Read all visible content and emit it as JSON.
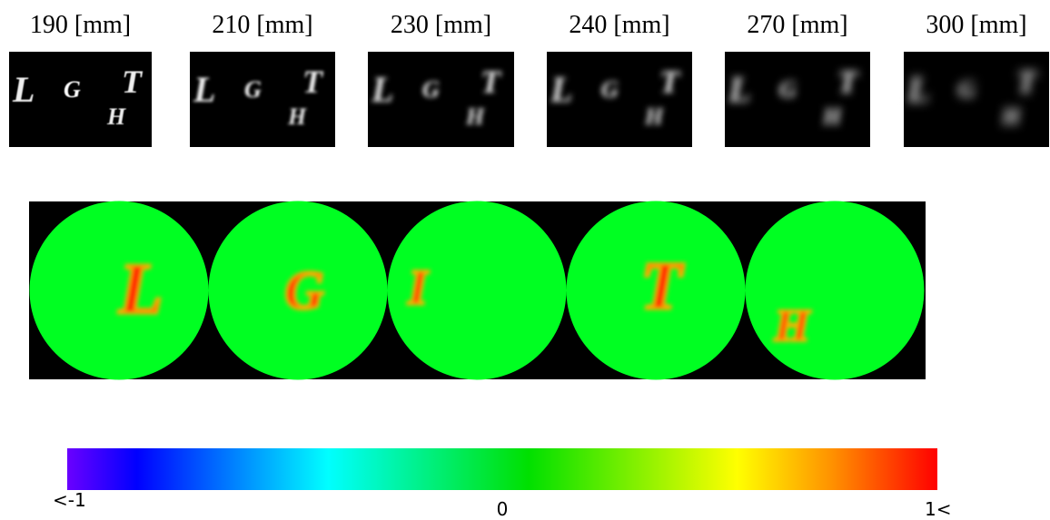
{
  "top_row": {
    "labels": [
      "190 [mm]",
      "210 [mm]",
      "230 [mm]",
      "240 [mm]",
      "270 [mm]",
      "300 [mm]"
    ],
    "letters": [
      "L",
      "G",
      "H",
      "T"
    ]
  },
  "depth_maps": {
    "letters": [
      "L",
      "G",
      "I",
      "T",
      "H"
    ]
  },
  "colorbar": {
    "labels": [
      "<-1",
      "0",
      "1<"
    ]
  }
}
